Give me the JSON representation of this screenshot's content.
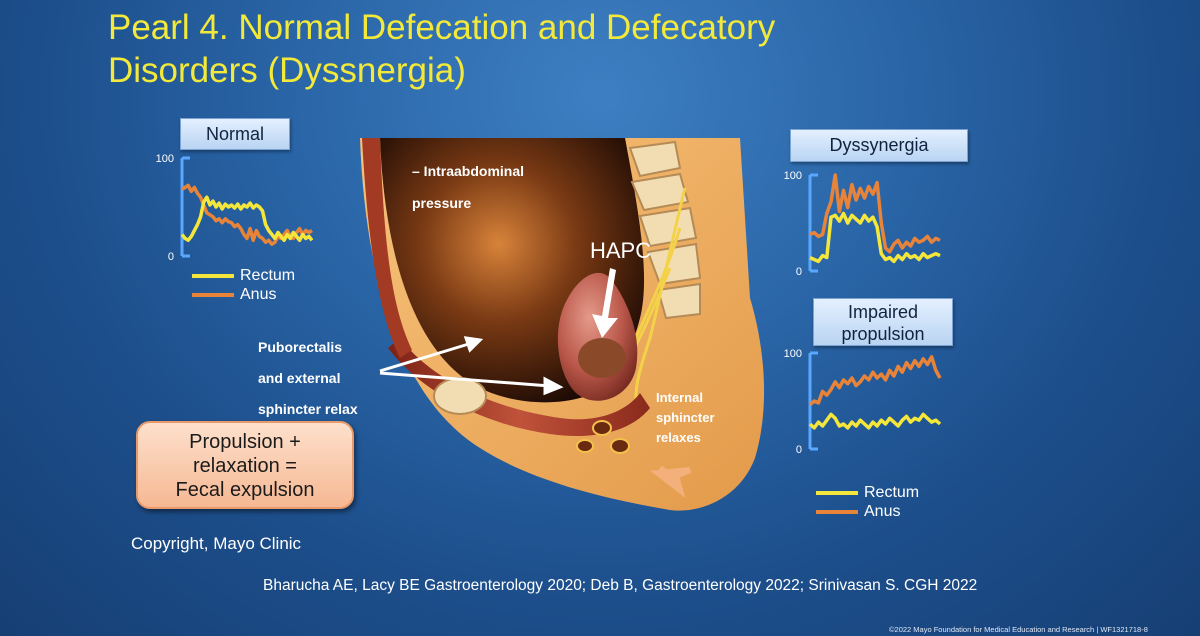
{
  "slide": {
    "title_line1": "Pearl 4. Normal Defecation and Defecatory",
    "title_line2": "Disorders (Dyssnergia)",
    "copyright": "Copyright, Mayo Clinic",
    "references": "Bharucha AE, Lacy BE Gastroenterology 2020; Deb B, Gastroenterology 2022; Srinivasan S. CGH 2022",
    "footer": "©2022 Mayo Foundation for Medical Education and Research  |  WF1321718-8"
  },
  "colors": {
    "title": "#f3e93a",
    "rectum": "#f4e63a",
    "anus": "#e8833a",
    "axis": "#5aa7ff"
  },
  "panels": {
    "normal": {
      "label": "Normal"
    },
    "dyssynergia": {
      "label": "Dyssynergia"
    },
    "impaired": {
      "label_line1": "Impaired",
      "label_line2": "propulsion"
    }
  },
  "legend": {
    "rectum": "Rectum",
    "anus": "Anus"
  },
  "illustration": {
    "intra_line1": "– Intraabdominal",
    "intra_line2": "pressure",
    "hapc": "HAPC",
    "pub_line1": "Puborectalis",
    "pub_line2": "and external",
    "pub_line3": "sphincter relax",
    "int_line1": "Internal",
    "int_line2": "sphincter",
    "int_line3": "relaxes"
  },
  "callout": {
    "line1": "Propulsion +",
    "line2": "relaxation =",
    "line3": "Fecal expulsion"
  },
  "chart_data": [
    {
      "type": "line",
      "title": "Normal",
      "ylim": [
        0,
        100
      ],
      "yticks": [
        "100",
        "0"
      ],
      "series": [
        {
          "name": "Rectum",
          "x": [
            0,
            3,
            6,
            9,
            12,
            15,
            18,
            21,
            24,
            27,
            30,
            33,
            36,
            39,
            42,
            45,
            48,
            51,
            54,
            57,
            60,
            63,
            66,
            69,
            72,
            75,
            78,
            81,
            84,
            87,
            90,
            93,
            96,
            99,
            102,
            105,
            108,
            111,
            114,
            117,
            120,
            123,
            126
          ],
          "values": [
            22,
            18,
            16,
            20,
            26,
            32,
            40,
            55,
            60,
            52,
            56,
            50,
            54,
            48,
            53,
            50,
            52,
            49,
            53,
            48,
            52,
            50,
            54,
            49,
            52,
            50,
            46,
            32,
            26,
            22,
            18,
            24,
            20,
            16,
            22,
            18,
            24,
            20,
            16,
            22,
            18,
            20,
            16
          ]
        },
        {
          "name": "Anus",
          "x": [
            0,
            3,
            6,
            9,
            12,
            15,
            18,
            21,
            24,
            27,
            30,
            33,
            36,
            39,
            42,
            45,
            48,
            51,
            54,
            57,
            60,
            63,
            66,
            69,
            72,
            75,
            78,
            81,
            84,
            87,
            90,
            93,
            96,
            99,
            102,
            105,
            108,
            111,
            114,
            117,
            120,
            123,
            126
          ],
          "values": [
            68,
            70,
            72,
            66,
            70,
            64,
            60,
            52,
            44,
            42,
            40,
            36,
            38,
            34,
            38,
            35,
            34,
            30,
            32,
            28,
            22,
            18,
            28,
            16,
            26,
            20,
            18,
            14,
            16,
            12,
            14,
            20,
            18,
            22,
            26,
            20,
            18,
            24,
            28,
            22,
            26,
            24,
            26
          ]
        }
      ]
    },
    {
      "type": "line",
      "title": "Dyssynergia",
      "ylim": [
        0,
        100
      ],
      "yticks": [
        "100",
        "0"
      ],
      "series": [
        {
          "name": "Rectum",
          "x": [
            0,
            4,
            8,
            12,
            16,
            20,
            24,
            28,
            32,
            36,
            40,
            44,
            48,
            52,
            56,
            60,
            64,
            68,
            72,
            76,
            80,
            84,
            88,
            92,
            96,
            100,
            104,
            108,
            112,
            116,
            120,
            124
          ],
          "values": [
            14,
            12,
            10,
            16,
            14,
            56,
            58,
            52,
            60,
            50,
            58,
            54,
            50,
            58,
            52,
            56,
            46,
            18,
            12,
            14,
            10,
            16,
            12,
            18,
            14,
            16,
            12,
            18,
            14,
            16,
            18,
            16
          ]
        },
        {
          "name": "Anus",
          "x": [
            0,
            4,
            8,
            12,
            16,
            20,
            24,
            28,
            32,
            36,
            40,
            44,
            48,
            52,
            56,
            60,
            64,
            68,
            72,
            76,
            80,
            84,
            88,
            92,
            96,
            100,
            104,
            108,
            112,
            116,
            120,
            124
          ],
          "values": [
            38,
            40,
            36,
            38,
            60,
            72,
            100,
            62,
            84,
            66,
            90,
            74,
            86,
            76,
            88,
            80,
            92,
            50,
            24,
            20,
            28,
            32,
            24,
            30,
            26,
            34,
            30,
            32,
            36,
            30,
            34,
            32
          ]
        }
      ]
    },
    {
      "type": "line",
      "title": "Impaired propulsion",
      "ylim": [
        0,
        100
      ],
      "yticks": [
        "100",
        "0"
      ],
      "series": [
        {
          "name": "Rectum",
          "x": [
            0,
            4,
            8,
            12,
            16,
            20,
            24,
            28,
            32,
            36,
            40,
            44,
            48,
            52,
            56,
            60,
            64,
            68,
            72,
            76,
            80,
            84,
            88,
            92,
            96,
            100,
            104,
            108,
            112,
            116,
            120,
            124
          ],
          "values": [
            26,
            22,
            28,
            24,
            30,
            36,
            32,
            24,
            26,
            22,
            28,
            24,
            30,
            26,
            22,
            28,
            24,
            30,
            26,
            32,
            28,
            24,
            30,
            34,
            28,
            32,
            30,
            36,
            32,
            28,
            30,
            26
          ]
        },
        {
          "name": "Anus",
          "x": [
            0,
            4,
            8,
            12,
            16,
            20,
            24,
            28,
            32,
            36,
            40,
            44,
            48,
            52,
            56,
            60,
            64,
            68,
            72,
            76,
            80,
            84,
            88,
            92,
            96,
            100,
            104,
            108,
            112,
            116,
            120,
            124
          ],
          "values": [
            46,
            50,
            48,
            60,
            56,
            62,
            70,
            64,
            72,
            68,
            74,
            66,
            70,
            76,
            72,
            80,
            74,
            78,
            72,
            82,
            76,
            86,
            80,
            90,
            84,
            92,
            86,
            94,
            88,
            96,
            82,
            74
          ]
        }
      ]
    }
  ]
}
